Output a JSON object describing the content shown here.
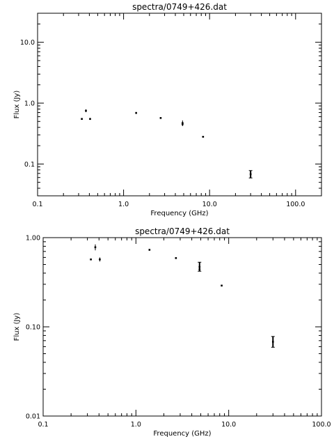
{
  "chart_data": [
    {
      "type": "scatter",
      "title": "spectra/0749+426.dat",
      "xlabel": "Frequency (GHz)",
      "ylabel": "Flux (Jy)",
      "xscale": "log",
      "yscale": "log",
      "xlim": [
        0.1,
        200
      ],
      "ylim": [
        0.03,
        30
      ],
      "xticks": [
        0.1,
        1.0,
        10.0,
        100.0
      ],
      "xtick_labels": [
        "0.1",
        "1.0",
        "10.0",
        "100.0"
      ],
      "yticks": [
        0.1,
        1.0,
        10.0
      ],
      "ytick_labels": [
        "0.1",
        "1.0",
        "10.0"
      ],
      "grid": false,
      "legend": "none",
      "points": [
        {
          "x": 0.327,
          "y": 0.55,
          "ylo": 0.54,
          "yhi": 0.56
        },
        {
          "x": 0.365,
          "y": 0.75,
          "ylo": 0.71,
          "yhi": 0.79
        },
        {
          "x": 0.408,
          "y": 0.55,
          "ylo": 0.53,
          "yhi": 0.57
        },
        {
          "x": 1.4,
          "y": 0.69,
          "ylo": 0.68,
          "yhi": 0.7
        },
        {
          "x": 2.7,
          "y": 0.57,
          "ylo": 0.56,
          "yhi": 0.58
        },
        {
          "x": 4.85,
          "y": 0.47,
          "ylo": 0.42,
          "yhi": 0.52
        },
        {
          "x": 4.85,
          "y": 0.45,
          "ylo": 0.43,
          "yhi": 0.47
        },
        {
          "x": 8.4,
          "y": 0.28,
          "ylo": 0.275,
          "yhi": 0.285
        },
        {
          "x": 30.0,
          "y": 0.068,
          "ylo": 0.059,
          "yhi": 0.078
        }
      ]
    },
    {
      "type": "scatter",
      "title": "spectra/0749+426.dat",
      "xlabel": "Frequency (GHz)",
      "ylabel": "Flux (Jy)",
      "xscale": "log",
      "yscale": "log",
      "xlim": [
        0.1,
        100
      ],
      "ylim": [
        0.01,
        1.0
      ],
      "xticks": [
        0.1,
        1.0,
        10.0,
        100.0
      ],
      "xtick_labels": [
        "0.1",
        "1.0",
        "10.0",
        "100.0"
      ],
      "yticks": [
        0.01,
        0.1,
        1.0
      ],
      "ytick_labels": [
        "0.01",
        "0.10",
        "1.00"
      ],
      "grid": false,
      "legend": "none",
      "points": [
        {
          "x": 0.327,
          "y": 0.57,
          "ylo": 0.56,
          "yhi": 0.58
        },
        {
          "x": 0.365,
          "y": 0.78,
          "ylo": 0.72,
          "yhi": 0.84
        },
        {
          "x": 0.408,
          "y": 0.57,
          "ylo": 0.54,
          "yhi": 0.6
        },
        {
          "x": 1.4,
          "y": 0.73,
          "ylo": 0.72,
          "yhi": 0.74
        },
        {
          "x": 2.7,
          "y": 0.59,
          "ylo": 0.58,
          "yhi": 0.6
        },
        {
          "x": 4.85,
          "y": 0.47,
          "ylo": 0.42,
          "yhi": 0.53
        },
        {
          "x": 4.85,
          "y": 0.44,
          "ylo": 0.42,
          "yhi": 0.46
        },
        {
          "x": 8.4,
          "y": 0.29,
          "ylo": 0.285,
          "yhi": 0.295
        },
        {
          "x": 30.0,
          "y": 0.068,
          "ylo": 0.059,
          "yhi": 0.078
        }
      ]
    }
  ]
}
